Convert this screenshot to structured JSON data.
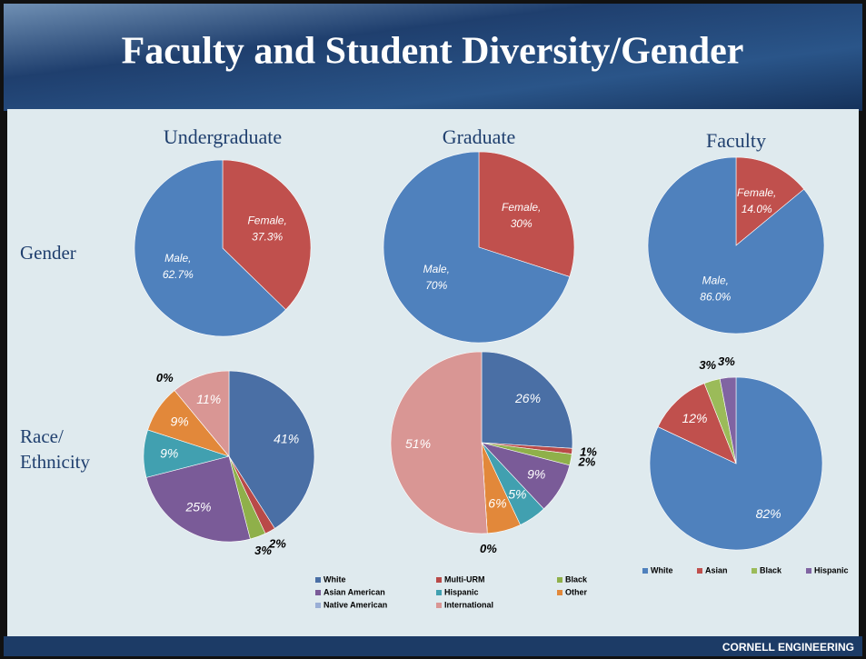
{
  "slide": {
    "title": "Faculty and Student Diversity/Gender",
    "columns": [
      "Undergraduate",
      "Graduate",
      "Faculty"
    ],
    "rows": [
      "Gender",
      "Race/",
      "Ethnicity"
    ],
    "footer": "CORNELL ENGINEERING"
  },
  "chart_data": [
    {
      "type": "pie",
      "categories": [
        "Female,",
        "Male,"
      ],
      "values": [
        37.3,
        62.7
      ],
      "value_labels": [
        "37.3%",
        "62.7%"
      ],
      "colors": [
        "#c0504d",
        "#4f81bd"
      ]
    },
    {
      "type": "pie",
      "categories": [
        "Female,",
        "Male,"
      ],
      "values": [
        30,
        70
      ],
      "value_labels": [
        "30%",
        "70%"
      ],
      "colors": [
        "#c0504d",
        "#4f81bd"
      ]
    },
    {
      "type": "pie",
      "categories": [
        "Female,",
        "Male,"
      ],
      "values": [
        14.0,
        86.0
      ],
      "value_labels": [
        "14.0%",
        "86.0%"
      ],
      "colors": [
        "#c0504d",
        "#4f81bd"
      ]
    },
    {
      "type": "pie",
      "categories": [
        "White",
        "Multi-URM",
        "Black",
        "Asian American",
        "Hispanic",
        "Other",
        "Native American",
        "International"
      ],
      "values": [
        41,
        2,
        3,
        25,
        9,
        9,
        0,
        11
      ],
      "value_labels": [
        "41%",
        "2%",
        "3%",
        "25%",
        "9%",
        "9%",
        "0%",
        "11%"
      ],
      "colors": [
        "#4a6fa5",
        "#b94a48",
        "#8fb04a",
        "#7a5b98",
        "#41a0b0",
        "#e2883a",
        "#9aaed6",
        "#d99694"
      ]
    },
    {
      "type": "pie",
      "categories": [
        "White",
        "Multi-URM",
        "Black",
        "Asian American",
        "Hispanic",
        "Other",
        "Native American",
        "International"
      ],
      "values": [
        26,
        1,
        2,
        9,
        5,
        6,
        0,
        51
      ],
      "value_labels": [
        "26%",
        "1%",
        "2%",
        "9%",
        "5%",
        "6%",
        "0%",
        "51%"
      ],
      "colors": [
        "#4a6fa5",
        "#b94a48",
        "#8fb04a",
        "#7a5b98",
        "#41a0b0",
        "#e2883a",
        "#9aaed6",
        "#d99694"
      ],
      "legend": "bottom"
    },
    {
      "type": "pie",
      "categories": [
        "White",
        "Asian",
        "Black",
        "Hispanic"
      ],
      "values": [
        82,
        12,
        3,
        3
      ],
      "value_labels": [
        "82%",
        "12%",
        "3%",
        "3%"
      ],
      "colors": [
        "#4f81bd",
        "#c0504d",
        "#9bbb59",
        "#8064a2"
      ],
      "legend": "bottom"
    }
  ]
}
